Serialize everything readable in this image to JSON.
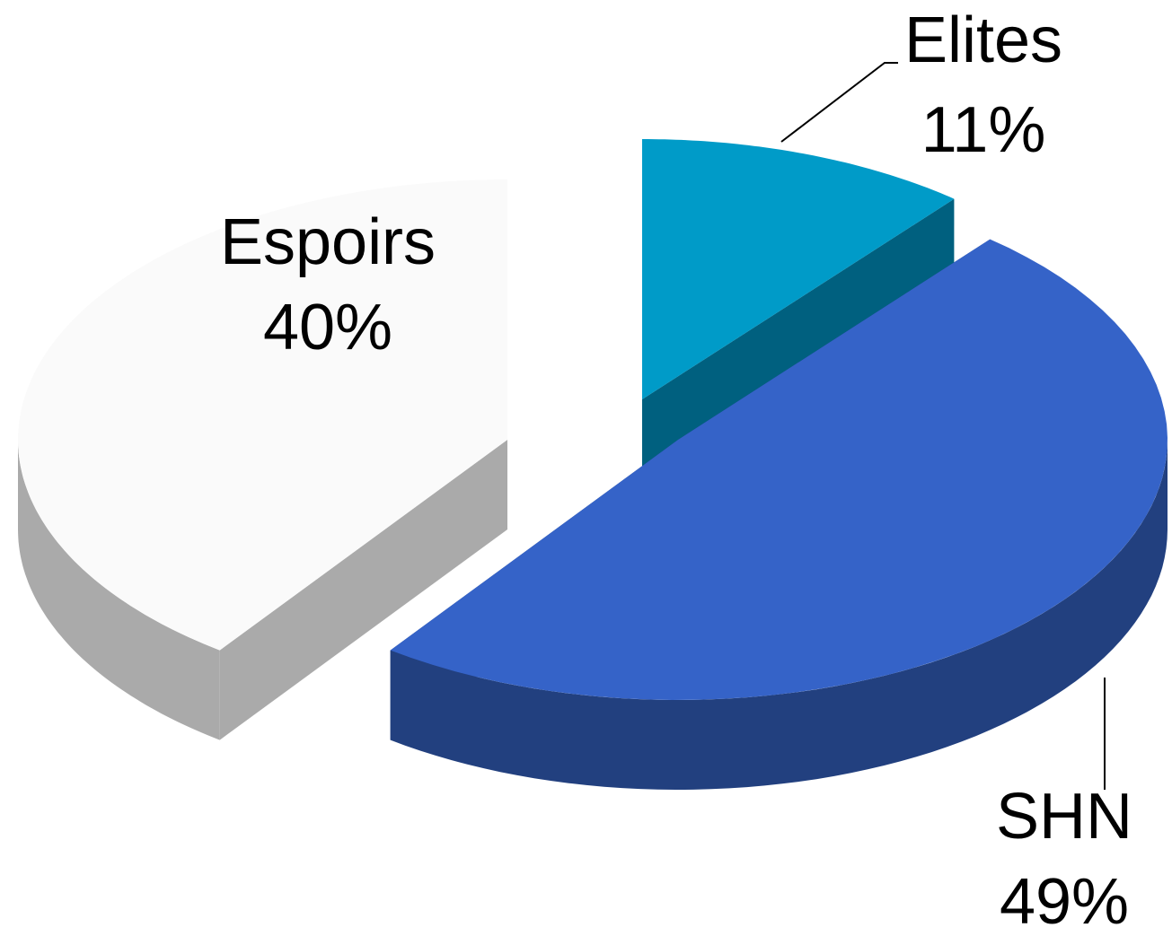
{
  "chart_data": {
    "type": "pie",
    "categories": [
      "Elites",
      "SHN",
      "Espoirs"
    ],
    "values": [
      11,
      49,
      40
    ],
    "value_labels": [
      "11%",
      "49%",
      "40%"
    ],
    "colors": [
      "#009bc8",
      "#3563c8",
      "#fafafa"
    ],
    "side_colors": [
      "#00607f",
      "#22407f",
      "#aaaaaa"
    ]
  }
}
